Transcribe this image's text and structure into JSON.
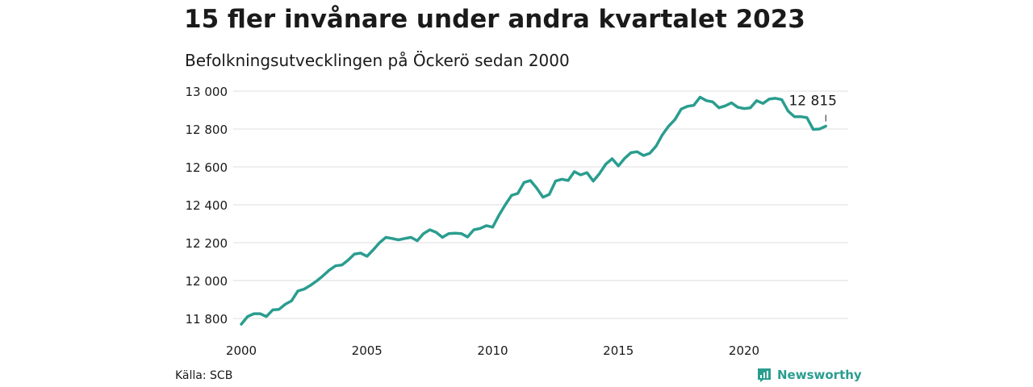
{
  "title": "15 fler invånare under andra kvartalet 2023",
  "subtitle": "Befolkningsutvecklingen på Öckerö sedan 2000",
  "source": "Källa: SCB",
  "logo": {
    "text": "Newsworthy",
    "icon": "newsworthy-logo-icon"
  },
  "colors": {
    "line": "#2a9d8f",
    "grid": "#dddddd",
    "text": "#1a1a1a"
  },
  "chart_data": {
    "type": "line",
    "title": "15 fler invånare under andra kvartalet 2023",
    "subtitle": "Befolkningsutvecklingen på Öckerö sedan 2000",
    "xlabel": "",
    "ylabel": "",
    "grid": true,
    "ylim": [
      11780,
      13020
    ],
    "xlim": [
      2000,
      2023.5
    ],
    "yticks": [
      11800,
      12000,
      12200,
      12400,
      12600,
      12800,
      13000
    ],
    "ytick_labels": [
      "11 800",
      "12 000",
      "12 200",
      "12 400",
      "12 600",
      "12 800",
      "13 000"
    ],
    "xticks": [
      2000,
      2005,
      2010,
      2015,
      2020
    ],
    "xtick_labels": [
      "2000",
      "2005",
      "2010",
      "2015",
      "2020"
    ],
    "annotation": {
      "text": "12 815",
      "x": 2023.25,
      "y": 12815
    },
    "series": [
      {
        "x": [
          2000.0,
          2000.25,
          2000.5,
          2000.75,
          2001.0,
          2001.25,
          2001.5,
          2001.75,
          2002.0,
          2002.25,
          2002.5,
          2002.75,
          2003.0,
          2003.25,
          2003.5,
          2003.75,
          2004.0,
          2004.25,
          2004.5,
          2004.75,
          2005.0,
          2005.25,
          2005.5,
          2005.75,
          2006.0,
          2006.25,
          2006.5,
          2006.75,
          2007.0,
          2007.25,
          2007.5,
          2007.75,
          2008.0,
          2008.25,
          2008.5,
          2008.75,
          2009.0,
          2009.25,
          2009.5,
          2009.75,
          2010.0,
          2010.25,
          2010.5,
          2010.75,
          2011.0,
          2011.25,
          2011.5,
          2011.75,
          2012.0,
          2012.25,
          2012.5,
          2012.75,
          2013.0,
          2013.25,
          2013.5,
          2013.75,
          2014.0,
          2014.25,
          2014.5,
          2014.75,
          2015.0,
          2015.25,
          2015.5,
          2015.75,
          2016.0,
          2016.25,
          2016.5,
          2016.75,
          2017.0,
          2017.25,
          2017.5,
          2017.75,
          2018.0,
          2018.25,
          2018.5,
          2018.75,
          2019.0,
          2019.25,
          2019.5,
          2019.75,
          2020.0,
          2020.25,
          2020.5,
          2020.75,
          2021.0,
          2021.25,
          2021.5,
          2021.75,
          2022.0,
          2022.25,
          2022.5,
          2022.75,
          2023.0,
          2023.25
        ],
        "values": [
          11770,
          11810,
          11825,
          11825,
          11810,
          11845,
          11848,
          11875,
          11893,
          11945,
          11955,
          11975,
          11998,
          12025,
          12055,
          12078,
          12082,
          12108,
          12140,
          12145,
          12128,
          12162,
          12200,
          12228,
          12222,
          12215,
          12222,
          12228,
          12210,
          12248,
          12268,
          12255,
          12228,
          12248,
          12250,
          12248,
          12230,
          12268,
          12275,
          12290,
          12282,
          12345,
          12400,
          12450,
          12460,
          12518,
          12528,
          12488,
          12440,
          12455,
          12525,
          12535,
          12528,
          12575,
          12558,
          12570,
          12525,
          12565,
          12615,
          12643,
          12605,
          12645,
          12675,
          12680,
          12660,
          12672,
          12710,
          12770,
          12815,
          12850,
          12905,
          12920,
          12925,
          12968,
          12950,
          12943,
          12912,
          12922,
          12938,
          12915,
          12908,
          12912,
          12950,
          12935,
          12958,
          12962,
          12955,
          12895,
          12865,
          12865,
          12860,
          12798,
          12800,
          12815
        ]
      }
    ]
  }
}
